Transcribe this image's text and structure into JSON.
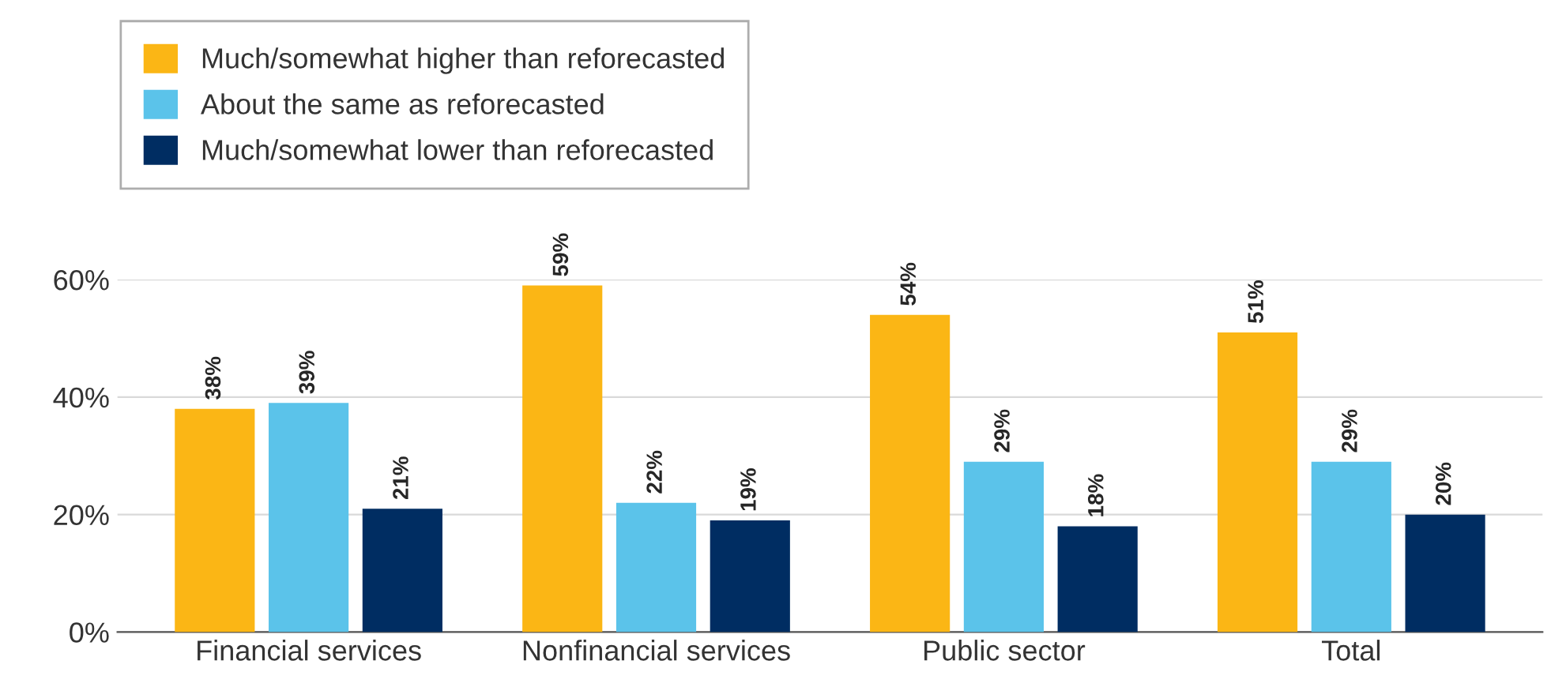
{
  "chart_data": {
    "type": "bar",
    "categories": [
      "Financial services",
      "Nonfinancial services",
      "Public sector",
      "Total"
    ],
    "series": [
      {
        "name": "Much/somewhat higher than reforecasted",
        "color": "#fbb615",
        "values": [
          38,
          59,
          54,
          51
        ]
      },
      {
        "name": "About the same as reforecasted",
        "color": "#5bc3ea",
        "values": [
          39,
          22,
          29,
          29
        ]
      },
      {
        "name": "Much/somewhat lower than reforecasted",
        "color": "#002d62",
        "values": [
          21,
          19,
          18,
          20
        ]
      }
    ],
    "ylim": [
      0,
      60
    ],
    "yticks": [
      {
        "value": 0,
        "label": "0%"
      },
      {
        "value": 20,
        "label": "20%"
      },
      {
        "value": 40,
        "label": "40%"
      },
      {
        "value": 60,
        "label": "60%"
      }
    ],
    "value_labels": [
      [
        "38%",
        "59%",
        "54%",
        "51%"
      ],
      [
        "39%",
        "22%",
        "29%",
        "29%"
      ],
      [
        "21%",
        "19%",
        "18%",
        "20%"
      ]
    ],
    "grid": "y",
    "legend": "top left"
  }
}
